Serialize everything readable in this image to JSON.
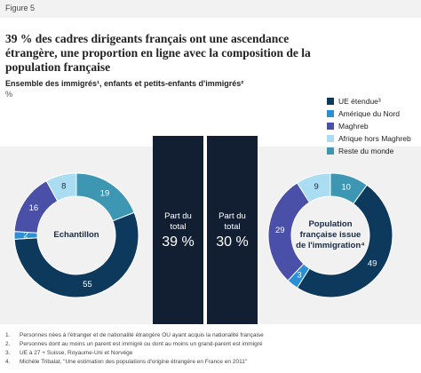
{
  "figure_label": "Figure 5",
  "title": "39 % des cadres dirigeants français ont une ascendance étrangère, une proportion en ligne avec la composition de la population française",
  "subtitle": "Ensemble des immigrés¹, enfants et petits-enfants d'immigrés²",
  "unit": "%",
  "legend": {
    "items": [
      {
        "name": "UE étendue³",
        "color": "#0d3a5c"
      },
      {
        "name": "Amérique du Nord",
        "color": "#2b8fd3"
      },
      {
        "name": "Maghreb",
        "color": "#4a50a8"
      },
      {
        "name": "Afrique hors Maghreb",
        "color": "#aadcf2"
      },
      {
        "name": "Reste du monde",
        "color": "#3d96b2"
      }
    ]
  },
  "chart_data": [
    {
      "type": "donut",
      "center_label": "Echantillon",
      "values": [
        55,
        2,
        16,
        8,
        19
      ],
      "share_label": "Part du total",
      "share": {
        "value": 39,
        "label": "39 %"
      }
    },
    {
      "type": "donut",
      "center_label": "Population française issue de l'immigration⁴",
      "values": [
        49,
        3,
        29,
        9,
        10
      ],
      "share_label": "Part du total",
      "share": {
        "value": 30,
        "label": "30 %"
      }
    }
  ],
  "footnotes": [
    {
      "number": "1.",
      "text": "Personnes nées à l'étranger et de nationalité étrangère OU ayant acquis la nationalité française"
    },
    {
      "number": "2.",
      "text": "Personnes dont au moins un parent est immigré ou dont au moins un grand-parent est immigré"
    },
    {
      "number": "3.",
      "text": "UE à 27 + Suisse, Royaume-Uni et Norvège"
    },
    {
      "number": "4.",
      "text": "Michèle Tribalat, \"Une estimation des populations d'origine étrangère en France en 2011\""
    }
  ]
}
